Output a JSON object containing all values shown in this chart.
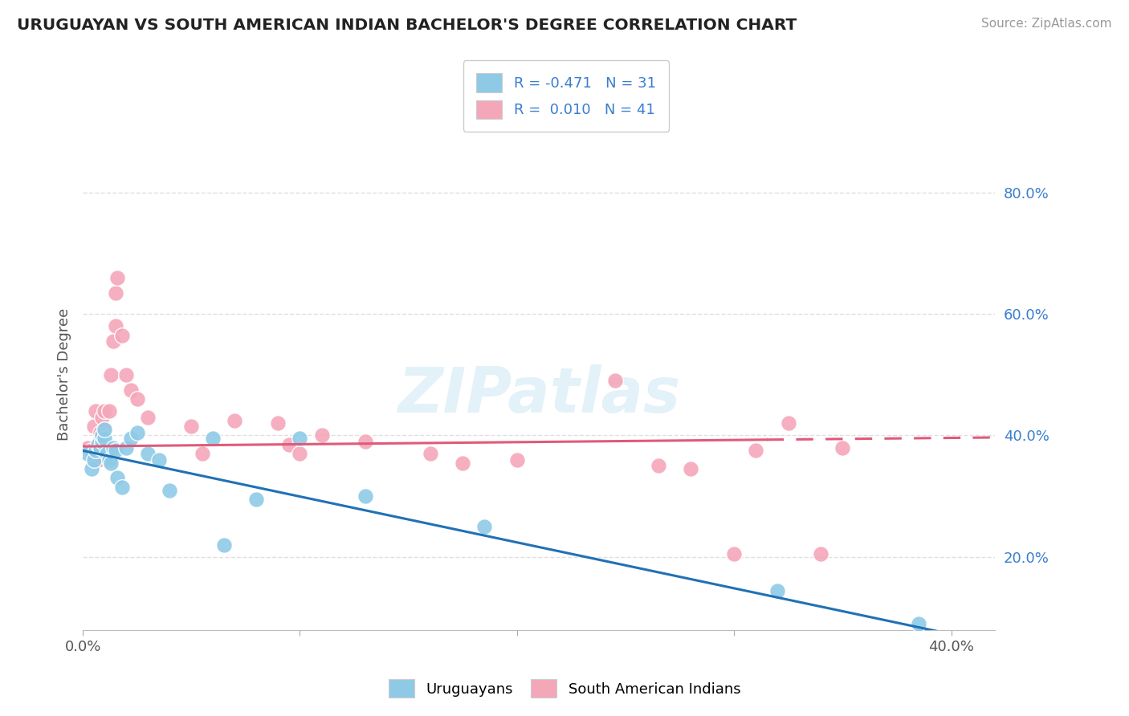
{
  "title": "URUGUAYAN VS SOUTH AMERICAN INDIAN BACHELOR'S DEGREE CORRELATION CHART",
  "source": "Source: ZipAtlas.com",
  "ylabel": "Bachelor's Degree",
  "xlim": [
    0.0,
    0.42
  ],
  "ylim": [
    0.08,
    0.92
  ],
  "yticks_right": [
    0.2,
    0.4,
    0.6,
    0.8
  ],
  "ytick_labels_right": [
    "20.0%",
    "40.0%",
    "60.0%",
    "80.0%"
  ],
  "color_uruguayan": "#8ecae6",
  "color_indian": "#f4a7b9",
  "line_color_uruguayan": "#2171b5",
  "line_color_indian": "#e05a7a",
  "watermark": "ZIPatlas",
  "background_color": "#ffffff",
  "uruguayan_x": [
    0.002,
    0.004,
    0.005,
    0.006,
    0.007,
    0.008,
    0.009,
    0.009,
    0.01,
    0.01,
    0.011,
    0.012,
    0.013,
    0.014,
    0.015,
    0.016,
    0.018,
    0.02,
    0.022,
    0.025,
    0.03,
    0.035,
    0.04,
    0.06,
    0.065,
    0.08,
    0.1,
    0.13,
    0.185,
    0.32,
    0.385
  ],
  "uruguayan_y": [
    0.37,
    0.345,
    0.36,
    0.375,
    0.385,
    0.38,
    0.39,
    0.4,
    0.395,
    0.41,
    0.37,
    0.36,
    0.355,
    0.38,
    0.375,
    0.33,
    0.315,
    0.38,
    0.395,
    0.405,
    0.37,
    0.36,
    0.31,
    0.395,
    0.22,
    0.295,
    0.395,
    0.3,
    0.25,
    0.145,
    0.09
  ],
  "indian_x": [
    0.002,
    0.004,
    0.005,
    0.006,
    0.007,
    0.008,
    0.008,
    0.009,
    0.01,
    0.01,
    0.011,
    0.012,
    0.013,
    0.014,
    0.015,
    0.015,
    0.016,
    0.018,
    0.02,
    0.022,
    0.025,
    0.03,
    0.05,
    0.055,
    0.07,
    0.09,
    0.095,
    0.1,
    0.11,
    0.13,
    0.16,
    0.175,
    0.2,
    0.245,
    0.265,
    0.28,
    0.3,
    0.31,
    0.325,
    0.34,
    0.35
  ],
  "indian_y": [
    0.38,
    0.375,
    0.415,
    0.44,
    0.36,
    0.395,
    0.405,
    0.43,
    0.44,
    0.41,
    0.38,
    0.44,
    0.5,
    0.555,
    0.58,
    0.635,
    0.66,
    0.565,
    0.5,
    0.475,
    0.46,
    0.43,
    0.415,
    0.37,
    0.425,
    0.42,
    0.385,
    0.37,
    0.4,
    0.39,
    0.37,
    0.355,
    0.36,
    0.49,
    0.35,
    0.345,
    0.205,
    0.375,
    0.42,
    0.205,
    0.38
  ],
  "grid_color": "#e0e0e0",
  "line_blue_intercept": 0.375,
  "line_blue_slope": -0.755,
  "line_pink_intercept": 0.382,
  "line_pink_slope": 0.035
}
